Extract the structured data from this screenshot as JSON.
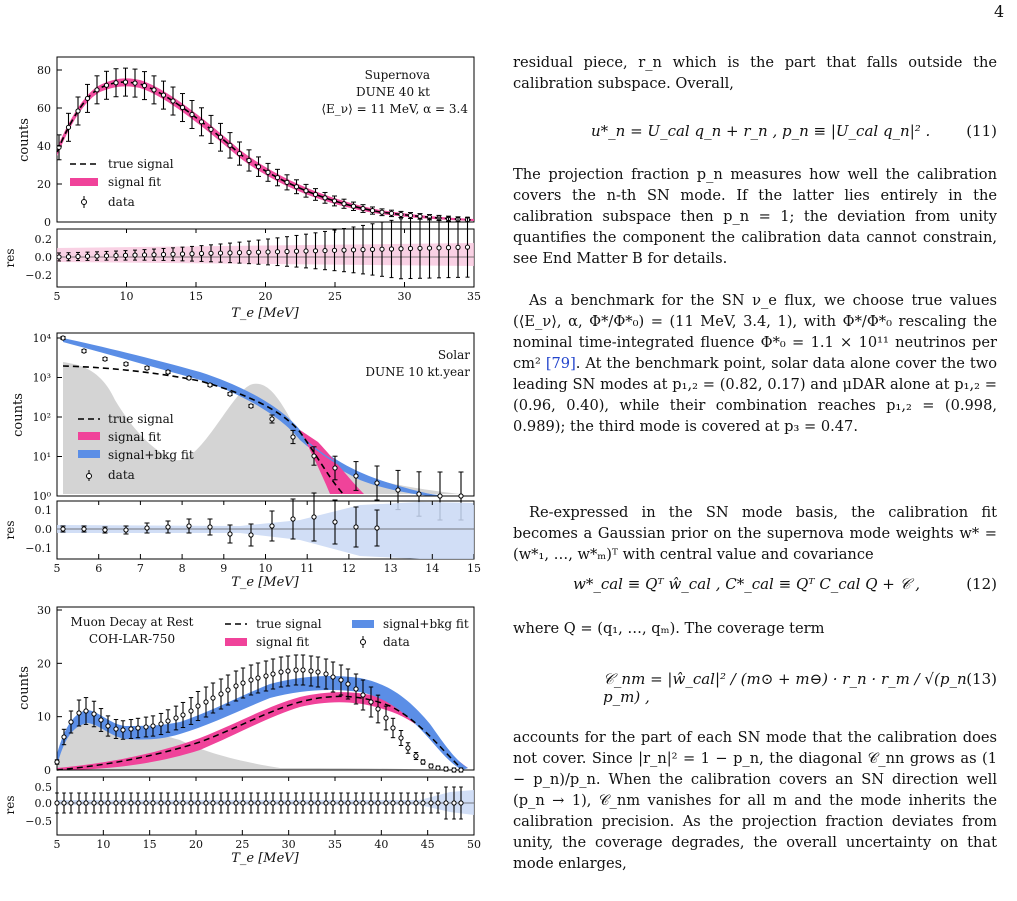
{
  "page": {
    "number": "4"
  },
  "figures": {
    "supernova": {
      "legend_top": [
        "Supernova",
        "DUNE 40 kt",
        "⟨E_ν⟩ = 11 MeV, α = 3.4"
      ],
      "legend": [
        "true signal",
        "signal fit",
        "data"
      ],
      "ylabel": "counts",
      "res_label": "res",
      "xlabel": "T_e [MeV]",
      "yticks": [
        "0",
        "20",
        "40",
        "60",
        "80"
      ],
      "xticks": [
        "5",
        "10",
        "15",
        "20",
        "25",
        "30",
        "35"
      ],
      "res_ticks": [
        "0.2",
        "0.0",
        "−0.2"
      ]
    },
    "solar": {
      "legend_top": [
        "Solar",
        "DUNE 10 kt.year"
      ],
      "legend": [
        "true signal",
        "signal fit",
        "signal+bkg fit",
        "data"
      ],
      "ylabel": "counts",
      "res_label": "res",
      "xlabel": "T_e [MeV]",
      "yticks": [
        "10⁰",
        "10¹",
        "10²",
        "10³",
        "10⁴"
      ],
      "xticks": [
        "5",
        "6",
        "7",
        "8",
        "9",
        "10",
        "11",
        "12",
        "13",
        "14",
        "15"
      ],
      "res_ticks": [
        "0.1",
        "0.0",
        "−0.1"
      ]
    },
    "muon": {
      "legend_top": [
        "Muon Decay at Rest",
        "COH-LAR-750"
      ],
      "legend": [
        "true signal",
        "signal fit",
        "signal+bkg fit",
        "data"
      ],
      "ylabel": "counts",
      "res_label": "res",
      "xlabel": "T_e [MeV]",
      "yticks": [
        "0",
        "10",
        "20",
        "30"
      ],
      "xticks": [
        "5",
        "10",
        "15",
        "20",
        "25",
        "30",
        "35",
        "40",
        "45",
        "50"
      ],
      "res_ticks": [
        "0.5",
        "0.0",
        "−0.5"
      ]
    }
  },
  "text": {
    "p0": "residual piece, r_n which is the part that falls outside the calibration subspace. Overall,",
    "eq11": "u*_n = U_cal q_n + r_n ,     p_n ≡ |U_cal q_n|² .",
    "eq11_num": "(11)",
    "p1": "The projection fraction p_n measures how well the calibration covers the n-th SN mode. If the latter lies entirely in the calibration subspace then p_n = 1; the deviation from unity quantifies the component the calibration data cannot constrain, see End Matter B for details.",
    "p2a": "As a benchmark for the SN ν_e flux, we choose true values (⟨E_ν⟩, α, Φ*/Φ*₀) = (11 MeV, 3.4, 1), with Φ*/Φ*₀ rescaling the nominal time-integrated fluence Φ*₀ = 1.1 × 10¹¹ neutrinos per cm²",
    "cite": "[79]",
    "p2b": ". At the benchmark point, solar data alone cover the two leading SN modes at p₁,₂ = (0.82, 0.17) and μDAR alone at p₁,₂ = (0.96, 0.40), while their combination reaches p₁,₂ = (0.998, 0.989); the third mode is covered at p₃ = 0.47.",
    "p3": "Re-expressed in the SN mode basis, the calibration fit becomes a Gaussian prior on the supernova mode weights w* = (w*₁, …, w*ₘ)ᵀ with central value and covariance",
    "eq12": "w*_cal ≡ Qᵀ ŵ_cal ,     C*_cal ≡ Qᵀ C_cal Q + 𝒞 ,",
    "eq12_num": "(12)",
    "p4": "where Q = (q₁, …, qₘ). The coverage term",
    "eq13": "𝒞_nm = |ŵ_cal|² / (m⊙ + m⊖) · r_n · r_m / √(p_n p_m) ,",
    "eq13_num": "(13)",
    "p5": "accounts for the part of each SN mode that the calibration does not cover. Since |r_n|² = 1 − p_n, the diagonal 𝒞_nn grows as (1 − p_n)/p_n. When the calibration covers an SN direction well (p_n → 1), 𝒞_nm vanishes for all m and the mode inherits the calibration precision. As the projection fraction deviates from unity, the coverage degrades, the overall uncertainty on that mode enlarges,"
  },
  "colors": {
    "pink": "#f0439a",
    "blue": "#5b8ee6",
    "grey": "#d4d4d4",
    "lightpink": "#f7c6dd",
    "lightblue": "#c9d8f4"
  }
}
